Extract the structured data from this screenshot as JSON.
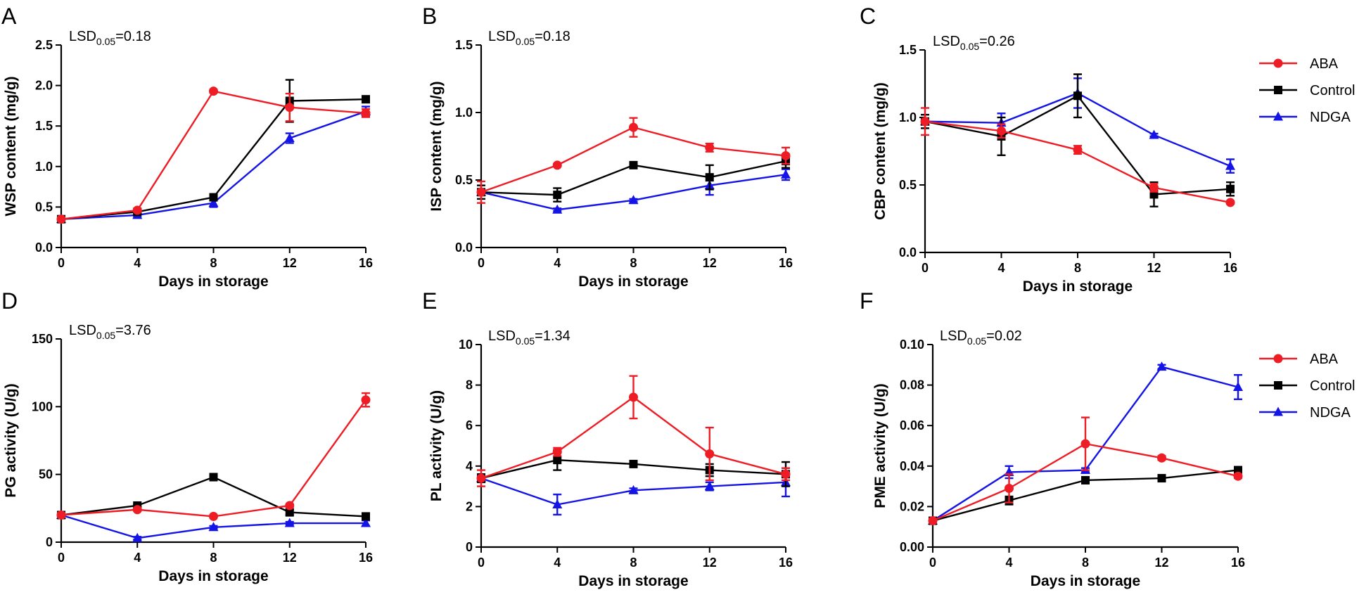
{
  "figure": {
    "legend_top": [
      {
        "name": "ABA",
        "color": "#ee1c24",
        "marker": "circle"
      },
      {
        "name": "Control",
        "color": "#000000",
        "marker": "square"
      },
      {
        "name": "NDGA",
        "color": "#1414e6",
        "marker": "triangle"
      }
    ],
    "legend_bottom": [
      {
        "name": "ABA",
        "color": "#ee1c24",
        "marker": "circle"
      },
      {
        "name": "Control",
        "color": "#000000",
        "marker": "square"
      },
      {
        "name": "NDGA",
        "color": "#1414e6",
        "marker": "triangle"
      }
    ]
  },
  "chart_data": [
    {
      "panel": "A",
      "type": "line",
      "title": "",
      "xlabel": "Days in storage",
      "ylabel": "WSP content (mg/g)",
      "x": [
        0,
        4,
        8,
        12,
        16
      ],
      "xticks": [
        "0",
        "4",
        "8",
        "12",
        "16"
      ],
      "ylim": [
        0,
        2.5
      ],
      "yticks": [
        "0.0",
        "0.5",
        "1.0",
        "1.5",
        "2.0",
        "2.5"
      ],
      "annotation": {
        "prefix": "LSD",
        "sub": "0.05",
        "suffix": "=0.18"
      },
      "series": [
        {
          "name": "ABA",
          "color": "#ee1c24",
          "marker": "circle",
          "values": [
            0.35,
            0.46,
            1.93,
            1.73,
            1.66
          ],
          "errors": [
            0.02,
            0.02,
            0.02,
            0.17,
            0.05
          ]
        },
        {
          "name": "Control",
          "color": "#000000",
          "marker": "square",
          "values": [
            0.35,
            0.44,
            0.62,
            1.81,
            1.83
          ],
          "errors": [
            0.02,
            0.02,
            0.03,
            0.26,
            0.03
          ]
        },
        {
          "name": "NDGA",
          "color": "#1414e6",
          "marker": "triangle",
          "values": [
            0.35,
            0.4,
            0.55,
            1.35,
            1.68
          ],
          "errors": [
            0.02,
            0.02,
            0.05,
            0.06,
            0.06
          ]
        }
      ]
    },
    {
      "panel": "B",
      "type": "line",
      "title": "",
      "xlabel": "Days in storage",
      "ylabel": "ISP content (mg/g)",
      "x": [
        0,
        4,
        8,
        12,
        16
      ],
      "xticks": [
        "0",
        "4",
        "8",
        "12",
        "16"
      ],
      "ylim": [
        0,
        1.5
      ],
      "yticks": [
        "0.0",
        "0.5",
        "1.0",
        "1.5"
      ],
      "annotation": {
        "prefix": "LSD",
        "sub": "0.05",
        "suffix": "=0.18"
      },
      "series": [
        {
          "name": "ABA",
          "color": "#ee1c24",
          "marker": "circle",
          "values": [
            0.41,
            0.61,
            0.89,
            0.74,
            0.68
          ],
          "errors": [
            0.08,
            0.01,
            0.07,
            0.03,
            0.06
          ]
        },
        {
          "name": "Control",
          "color": "#000000",
          "marker": "square",
          "values": [
            0.41,
            0.39,
            0.61,
            0.52,
            0.64
          ],
          "errors": [
            0.05,
            0.05,
            0.01,
            0.09,
            0.05
          ]
        },
        {
          "name": "NDGA",
          "color": "#1414e6",
          "marker": "triangle",
          "values": [
            0.41,
            0.28,
            0.35,
            0.46,
            0.54
          ],
          "errors": [
            0.02,
            0.01,
            0.01,
            0.07,
            0.04
          ]
        }
      ]
    },
    {
      "panel": "C",
      "type": "line",
      "title": "",
      "xlabel": "Days in storage",
      "ylabel": "CBP content (mg/g)",
      "x": [
        0,
        4,
        8,
        12,
        16
      ],
      "xticks": [
        "0",
        "4",
        "8",
        "12",
        "16"
      ],
      "ylim": [
        0,
        1.5
      ],
      "yticks": [
        "0.0",
        "0.5",
        "1.0",
        "1.5"
      ],
      "annotation": {
        "prefix": "LSD",
        "sub": "0.05",
        "suffix": "=0.26"
      },
      "series": [
        {
          "name": "ABA",
          "color": "#ee1c24",
          "marker": "circle",
          "values": [
            0.97,
            0.9,
            0.76,
            0.48,
            0.37
          ],
          "errors": [
            0.1,
            0.05,
            0.03,
            0.03,
            0.01
          ]
        },
        {
          "name": "Control",
          "color": "#000000",
          "marker": "square",
          "values": [
            0.97,
            0.86,
            1.16,
            0.43,
            0.47
          ],
          "errors": [
            0.05,
            0.14,
            0.16,
            0.09,
            0.05
          ]
        },
        {
          "name": "NDGA",
          "color": "#1414e6",
          "marker": "triangle",
          "values": [
            0.97,
            0.96,
            1.18,
            0.87,
            0.64
          ],
          "errors": [
            0.02,
            0.07,
            0.11,
            0.01,
            0.05
          ]
        }
      ]
    },
    {
      "panel": "D",
      "type": "line",
      "title": "",
      "xlabel": "Days in storage",
      "ylabel": "PG activity (U/g)",
      "x": [
        0,
        4,
        8,
        12,
        16
      ],
      "xticks": [
        "0",
        "4",
        "8",
        "12",
        "16"
      ],
      "ylim": [
        0,
        150
      ],
      "yticks": [
        "0",
        "50",
        "100",
        "150"
      ],
      "annotation": {
        "prefix": "LSD",
        "sub": "0.05",
        "suffix": "=3.76"
      },
      "series": [
        {
          "name": "ABA",
          "color": "#ee1c24",
          "marker": "circle",
          "values": [
            20,
            24,
            19,
            27,
            105
          ],
          "errors": [
            1.5,
            1,
            1,
            1,
            5
          ]
        },
        {
          "name": "Control",
          "color": "#000000",
          "marker": "square",
          "values": [
            20,
            27,
            48,
            22,
            19
          ],
          "errors": [
            1,
            1,
            1,
            2,
            1
          ]
        },
        {
          "name": "NDGA",
          "color": "#1414e6",
          "marker": "triangle",
          "values": [
            20,
            3,
            11,
            14,
            14
          ],
          "errors": [
            1,
            1,
            1,
            1,
            2
          ]
        }
      ]
    },
    {
      "panel": "E",
      "type": "line",
      "title": "",
      "xlabel": "Days in storage",
      "ylabel": "PL activity (U/g)",
      "x": [
        0,
        4,
        8,
        12,
        16
      ],
      "xticks": [
        "0",
        "4",
        "8",
        "12",
        "16"
      ],
      "ylim": [
        0,
        10
      ],
      "yticks": [
        "0",
        "2",
        "4",
        "6",
        "8",
        "10"
      ],
      "annotation": {
        "prefix": "LSD",
        "sub": "0.05",
        "suffix": "=1.34"
      },
      "series": [
        {
          "name": "ABA",
          "color": "#ee1c24",
          "marker": "circle",
          "values": [
            3.4,
            4.7,
            7.4,
            4.6,
            3.6
          ],
          "errors": [
            0.4,
            0.2,
            1.05,
            1.3,
            0.3
          ]
        },
        {
          "name": "Control",
          "color": "#000000",
          "marker": "square",
          "values": [
            3.4,
            4.3,
            4.1,
            3.8,
            3.6
          ],
          "errors": [
            0.2,
            0.5,
            0.1,
            0.3,
            0.6
          ]
        },
        {
          "name": "NDGA",
          "color": "#1414e6",
          "marker": "triangle",
          "values": [
            3.4,
            2.1,
            2.8,
            3.0,
            3.2
          ],
          "errors": [
            0.2,
            0.5,
            0.1,
            0.2,
            0.7
          ]
        }
      ]
    },
    {
      "panel": "F",
      "type": "line",
      "title": "",
      "xlabel": "Days in storage",
      "ylabel": "PME activity (U/g)",
      "x": [
        0,
        4,
        8,
        12,
        16
      ],
      "xticks": [
        "0",
        "4",
        "8",
        "12",
        "16"
      ],
      "ylim": [
        0,
        0.1
      ],
      "yticks": [
        "0.00",
        "0.02",
        "0.04",
        "0.06",
        "0.08",
        "0.10"
      ],
      "annotation": {
        "prefix": "LSD",
        "sub": "0.05",
        "suffix": "=0.02"
      },
      "series": [
        {
          "name": "ABA",
          "color": "#ee1c24",
          "marker": "circle",
          "values": [
            0.013,
            0.029,
            0.051,
            0.044,
            0.035
          ],
          "errors": [
            0.001,
            0.007,
            0.013,
            0.001,
            0.001
          ]
        },
        {
          "name": "Control",
          "color": "#000000",
          "marker": "square",
          "values": [
            0.013,
            0.023,
            0.033,
            0.034,
            0.038
          ],
          "errors": [
            0.001,
            0.002,
            0.001,
            0.001,
            0.001
          ]
        },
        {
          "name": "NDGA",
          "color": "#1414e6",
          "marker": "triangle",
          "values": [
            0.013,
            0.037,
            0.038,
            0.089,
            0.079
          ],
          "errors": [
            0.001,
            0.003,
            0.001,
            0.001,
            0.006
          ]
        }
      ]
    }
  ]
}
